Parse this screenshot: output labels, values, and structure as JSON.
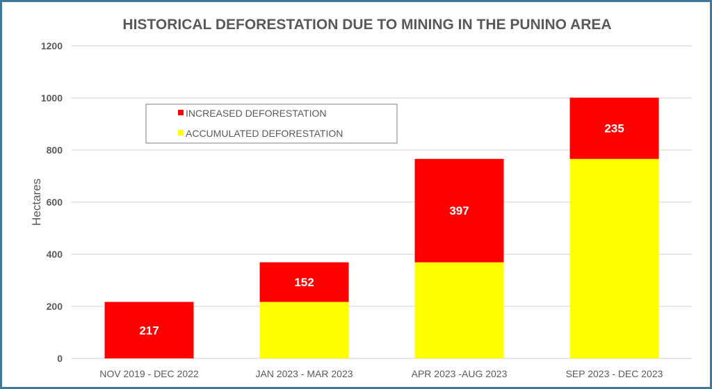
{
  "chart_data": {
    "type": "bar",
    "stacked": true,
    "title": "HISTORICAL DEFORESTATION DUE TO MINING IN THE PUNINO AREA",
    "xlabel": "",
    "ylabel": "Hectares",
    "ylim": [
      0,
      1200
    ],
    "yticks": [
      0,
      200,
      400,
      600,
      800,
      1000,
      1200
    ],
    "grid": true,
    "legend_placement": "top-left",
    "categories": [
      "NOV 2019 - DEC 2022",
      "JAN 2023 - MAR 2023",
      "APR 2023 -AUG 2023",
      "SEP 2023 - DEC 2023"
    ],
    "series": [
      {
        "name": "ACCUMULATED DEFORESTATION",
        "color": "#ffff00",
        "values": [
          0,
          217,
          369,
          766
        ]
      },
      {
        "name": "INCREASED DEFORESTATION",
        "color": "#ff0000",
        "values": [
          217,
          152,
          397,
          235
        ],
        "data_labels": true
      }
    ],
    "legend_order": [
      "INCREASED DEFORESTATION",
      "ACCUMULATED DEFORESTATION"
    ]
  }
}
